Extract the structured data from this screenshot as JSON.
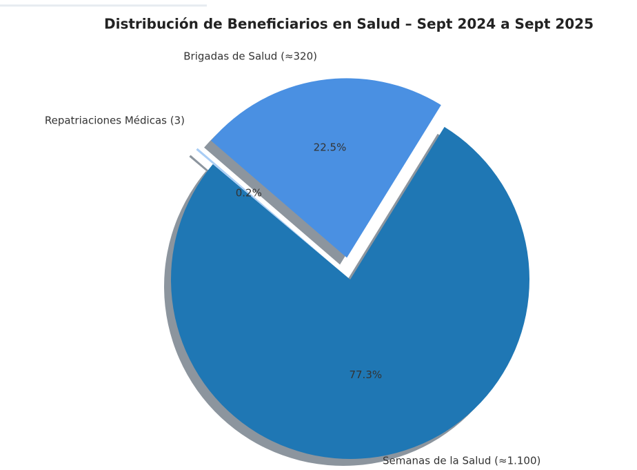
{
  "chart_data": {
    "type": "pie",
    "title": "Distribución de Beneficiarios en Salud – Sept 2024 a Sept 2025",
    "categories": [
      "Semanas de la Salud (≈1.100)",
      "Brigadas de Salud (≈320)",
      "Repatriaciones Médicas (3)"
    ],
    "values": [
      77.3,
      22.5,
      0.2
    ],
    "value_labels": [
      "77.3%",
      "22.5%",
      "0.2%"
    ],
    "colors": [
      "#1f77b4",
      "#4a90e2",
      "#a9cdf5"
    ]
  }
}
